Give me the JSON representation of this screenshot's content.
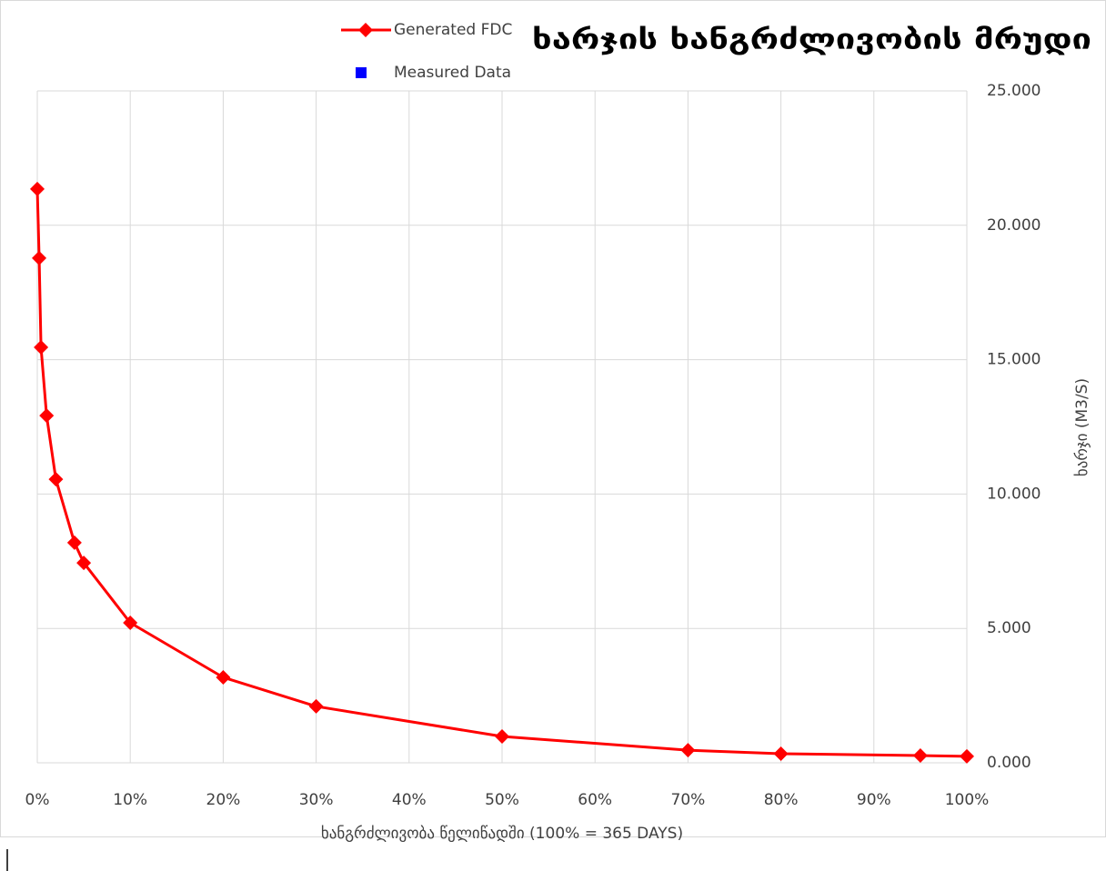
{
  "chart_data": {
    "type": "line",
    "title": "ხარჯის ხანგრძლივობის მრუდი",
    "x_label": "ხანგრძლივობა წელიწადში (100% = 365 DAYS)",
    "y_label": "ხარჯი (M3/S)",
    "x": [
      0,
      0.2,
      0.4,
      1,
      2,
      4,
      5,
      10,
      20,
      30,
      50,
      70,
      80,
      95,
      100
    ],
    "series": [
      {
        "name": "Generated FDC",
        "color": "#ff0000",
        "marker": "diamond",
        "values": [
          21.35,
          18.78,
          15.46,
          12.92,
          10.55,
          8.19,
          7.44,
          5.21,
          3.18,
          2.1,
          0.98,
          0.47,
          0.34,
          0.27,
          0.24
        ]
      },
      {
        "name": "Measured Data",
        "color": "#0000ff",
        "marker": "square",
        "values": [
          null,
          null,
          null,
          null,
          null,
          null,
          null,
          null,
          null,
          null,
          null,
          null,
          null,
          null,
          null
        ]
      }
    ],
    "xlim": [
      0,
      100
    ],
    "xticks": [
      {
        "value": 0,
        "label": "0%"
      },
      {
        "value": 10,
        "label": "10%"
      },
      {
        "value": 20,
        "label": "20%"
      },
      {
        "value": 30,
        "label": "30%"
      },
      {
        "value": 40,
        "label": "40%"
      },
      {
        "value": 50,
        "label": "50%"
      },
      {
        "value": 60,
        "label": "60%"
      },
      {
        "value": 70,
        "label": "70%"
      },
      {
        "value": 80,
        "label": "80%"
      },
      {
        "value": 90,
        "label": "90%"
      },
      {
        "value": 100,
        "label": "100%"
      }
    ],
    "ylim": [
      0,
      25
    ],
    "yticks": [
      {
        "value": 0,
        "label": "0.000"
      },
      {
        "value": 5,
        "label": "5.000"
      },
      {
        "value": 10,
        "label": "10.000"
      },
      {
        "value": 15,
        "label": "15.000"
      },
      {
        "value": 20,
        "label": "20.000"
      },
      {
        "value": 25,
        "label": "25.000"
      }
    ],
    "y_axis_side": "right",
    "grid": true,
    "legend": "top"
  }
}
